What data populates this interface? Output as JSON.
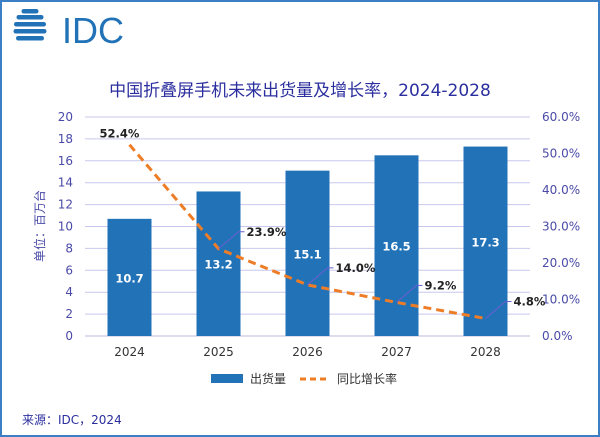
{
  "logo_text": "IDC",
  "source": "来源：IDC，2024",
  "colors": {
    "bar": "#2272b8",
    "line": "#ee7d27",
    "axis_text": "#4a4aa8",
    "title": "#2b2f9e",
    "frame": "#3d7fc4"
  },
  "chart_data": {
    "type": "bar+line",
    "title": "中国折叠屏手机未来出货量及增长率，2024-2028",
    "ylabel": "单位：百万台",
    "categories": [
      "2024",
      "2025",
      "2026",
      "2027",
      "2028"
    ],
    "ylim": [
      0,
      20
    ],
    "y_ticks": [
      "0",
      "2",
      "4",
      "6",
      "8",
      "10",
      "12",
      "14",
      "16",
      "18",
      "20"
    ],
    "y2lim": [
      0,
      60
    ],
    "y2_ticks": [
      "0.0%",
      "10.0%",
      "20.0%",
      "30.0%",
      "40.0%",
      "50.0%",
      "60.0%"
    ],
    "grid": true,
    "legend_position": "bottom",
    "series": [
      {
        "name": "出货量",
        "type": "bar",
        "axis": "left",
        "values": [
          10.7,
          13.2,
          15.1,
          16.5,
          17.3
        ],
        "labels": [
          "10.7",
          "13.2",
          "15.1",
          "16.5",
          "17.3"
        ]
      },
      {
        "name": "同比增长率",
        "type": "line",
        "style": "dashed",
        "axis": "right",
        "values": [
          52.4,
          23.9,
          14.0,
          9.2,
          4.8
        ],
        "labels": [
          "52.4%",
          "23.9%",
          "14.0%",
          "9.2%",
          "4.8%"
        ]
      }
    ]
  }
}
